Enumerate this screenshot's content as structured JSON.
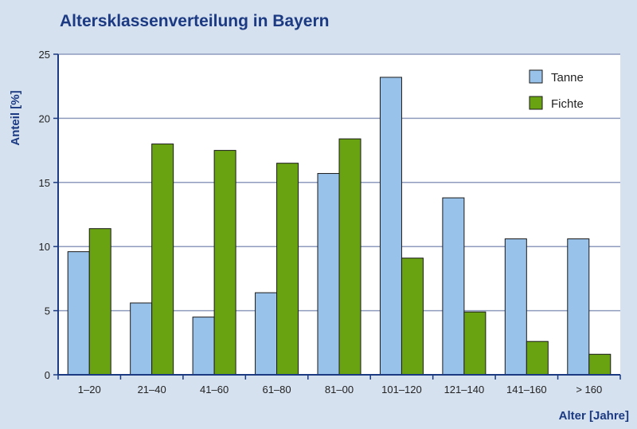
{
  "chart_data": {
    "type": "bar",
    "title": "Altersklassenverteilung in Bayern",
    "xlabel": "Alter [Jahre]",
    "ylabel": "Anteil [%]",
    "ylim": [
      0,
      25
    ],
    "yticks": [
      0,
      5,
      10,
      15,
      20,
      25
    ],
    "grid": true,
    "legend_position": "top-right",
    "categories": [
      "1–20",
      "21–40",
      "41–60",
      "61–80",
      "81–00",
      "101–120",
      "121–140",
      "141–160",
      "> 160"
    ],
    "series": [
      {
        "name": "Tanne",
        "color": "#99c2ea",
        "values": [
          9.6,
          5.6,
          4.5,
          6.4,
          15.7,
          23.2,
          13.8,
          10.6,
          10.6
        ]
      },
      {
        "name": "Fichte",
        "color": "#6aa312",
        "values": [
          11.4,
          18.0,
          17.5,
          16.5,
          18.4,
          9.1,
          4.9,
          2.6,
          1.6
        ]
      }
    ]
  }
}
